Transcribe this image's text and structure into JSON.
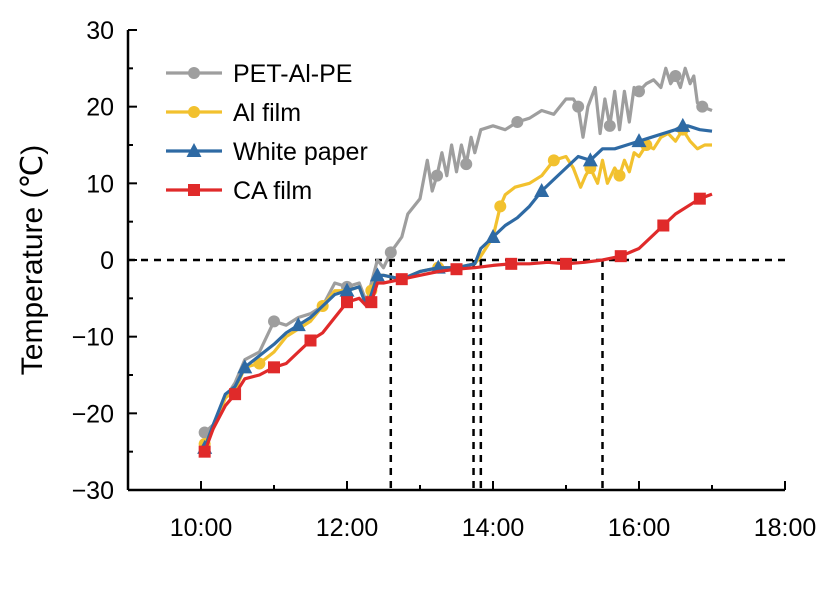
{
  "chart_data": {
    "type": "line",
    "title": "",
    "xlabel": "",
    "ylabel": "Temperature (℃)",
    "xlim": [
      "09:00",
      "18:00"
    ],
    "ylim": [
      -30,
      30
    ],
    "x_ticks": [
      "10:00",
      "12:00",
      "14:00",
      "16:00",
      "18:00"
    ],
    "y_ticks": [
      "−30",
      "−20",
      "−10",
      "0",
      "10",
      "20",
      "30"
    ],
    "grid": false,
    "legend_position": "top-left",
    "reference_lines": {
      "horizontal_y": 0,
      "vertical_x": [
        "12:36",
        "13:44",
        "13:50",
        "15:30"
      ]
    },
    "series": [
      {
        "name": "PET-Al-PE",
        "color": "#9e9e9e",
        "marker": "circle",
        "x": [
          "10:03",
          "10:10",
          "10:20",
          "10:28",
          "10:36",
          "10:48",
          "11:00",
          "11:10",
          "11:20",
          "11:30",
          "11:40",
          "11:50",
          "12:00",
          "12:10",
          "12:16",
          "12:20",
          "12:25",
          "12:30",
          "12:36",
          "12:45",
          "12:50",
          "13:00",
          "13:06",
          "13:10",
          "13:14",
          "13:18",
          "13:22",
          "13:26",
          "13:30",
          "13:34",
          "13:38",
          "13:42",
          "13:45",
          "13:50",
          "14:00",
          "14:10",
          "14:20",
          "14:30",
          "14:40",
          "14:50",
          "15:00",
          "15:06",
          "15:10",
          "15:14",
          "15:18",
          "15:24",
          "15:28",
          "15:32",
          "15:36",
          "15:40",
          "15:44",
          "15:48",
          "15:52",
          "15:56",
          "16:00",
          "16:06",
          "16:12",
          "16:18",
          "16:22",
          "16:26",
          "16:30",
          "16:34",
          "16:38",
          "16:42",
          "16:45",
          "16:48",
          "16:52",
          "17:00"
        ],
        "y": [
          -22.5,
          -21.5,
          -18,
          -16,
          -13,
          -12,
          -8,
          -8.5,
          -7.5,
          -7,
          -6,
          -3,
          -3.5,
          -3,
          -5.5,
          -3,
          0,
          -1,
          1,
          3,
          6,
          8,
          13,
          9,
          11,
          14,
          11,
          15,
          11.5,
          15,
          12.5,
          16,
          14,
          17,
          17.5,
          17,
          18,
          18.5,
          19.5,
          19,
          21,
          21,
          20,
          16,
          20,
          22.5,
          16.5,
          21,
          17.5,
          22,
          17,
          22,
          18,
          22.5,
          22,
          23,
          23.5,
          22.5,
          25,
          23,
          24,
          22.5,
          25,
          23,
          24,
          20.5,
          20,
          19.5
        ]
      },
      {
        "name": "Al film",
        "color": "#f2c12e",
        "marker": "circle",
        "x": [
          "10:03",
          "10:10",
          "10:20",
          "10:28",
          "10:36",
          "10:48",
          "11:00",
          "11:10",
          "11:20",
          "11:30",
          "11:40",
          "11:50",
          "12:00",
          "12:10",
          "12:16",
          "12:20",
          "12:25",
          "12:30",
          "12:45",
          "13:00",
          "13:15",
          "13:30",
          "13:45",
          "13:50",
          "14:00",
          "14:06",
          "14:10",
          "14:18",
          "14:30",
          "14:40",
          "14:50",
          "15:00",
          "15:06",
          "15:12",
          "15:16",
          "15:20",
          "15:26",
          "15:30",
          "15:34",
          "15:40",
          "15:44",
          "15:48",
          "15:52",
          "15:56",
          "16:00",
          "16:06",
          "16:12",
          "16:18",
          "16:24",
          "16:30",
          "16:36",
          "16:42",
          "16:48",
          "16:54",
          "17:00"
        ],
        "y": [
          -24,
          -22,
          -18,
          -17,
          -14,
          -13.5,
          -12,
          -10,
          -9,
          -8,
          -6,
          -4,
          -4,
          -3.5,
          -6,
          -4,
          -2,
          -2,
          -2.5,
          -1.5,
          -1,
          -1,
          -0.5,
          0.5,
          3,
          7,
          8.5,
          9.5,
          10,
          11,
          13,
          13.5,
          12,
          9.5,
          11,
          12,
          10,
          13,
          10,
          12,
          11,
          13,
          11.5,
          14,
          13.5,
          15,
          14.5,
          16,
          16.5,
          15.5,
          17,
          15.5,
          14.5,
          15,
          15
        ]
      },
      {
        "name": "White paper",
        "color": "#2e6aa4",
        "marker": "triangle",
        "x": [
          "10:03",
          "10:10",
          "10:20",
          "10:28",
          "10:36",
          "10:48",
          "11:00",
          "11:10",
          "11:20",
          "11:30",
          "11:40",
          "11:50",
          "12:00",
          "12:10",
          "12:16",
          "12:20",
          "12:25",
          "12:30",
          "12:45",
          "13:00",
          "13:15",
          "13:30",
          "13:45",
          "13:50",
          "14:00",
          "14:10",
          "14:20",
          "14:30",
          "14:40",
          "14:50",
          "15:00",
          "15:10",
          "15:20",
          "15:30",
          "15:40",
          "15:50",
          "16:00",
          "16:10",
          "16:20",
          "16:30",
          "16:36",
          "16:40",
          "16:50",
          "17:00"
        ],
        "y": [
          -24.5,
          -21.5,
          -17.5,
          -16.5,
          -14,
          -12.5,
          -11,
          -9.5,
          -8.5,
          -7.5,
          -6,
          -4.5,
          -4,
          -3.5,
          -6,
          -4.5,
          -2,
          -2,
          -2.5,
          -1.5,
          -1,
          -1,
          -0.5,
          1.5,
          3,
          4.5,
          5.5,
          7,
          9,
          10.5,
          12,
          13.5,
          13,
          14.5,
          14.5,
          15,
          15.5,
          16,
          16.5,
          17,
          17.5,
          17.5,
          17,
          16.8
        ]
      },
      {
        "name": "CA film",
        "color": "#e02a2a",
        "marker": "square",
        "x": [
          "10:03",
          "10:10",
          "10:20",
          "10:28",
          "10:36",
          "10:48",
          "11:00",
          "11:10",
          "11:20",
          "11:30",
          "11:40",
          "11:50",
          "12:00",
          "12:10",
          "12:16",
          "12:20",
          "12:25",
          "12:30",
          "12:45",
          "13:00",
          "13:15",
          "13:30",
          "13:45",
          "14:00",
          "14:15",
          "14:30",
          "14:45",
          "15:00",
          "15:15",
          "15:30",
          "15:45",
          "16:00",
          "16:10",
          "16:20",
          "16:30",
          "16:40",
          "16:50",
          "17:00"
        ],
        "y": [
          -25,
          -22,
          -19,
          -17.5,
          -15.5,
          -15,
          -14,
          -13.5,
          -12,
          -10.5,
          -9.5,
          -7.5,
          -5.5,
          -5,
          -6,
          -5.5,
          -3,
          -3,
          -2.5,
          -2,
          -1.5,
          -1.2,
          -1,
          -0.7,
          -0.5,
          -0.5,
          -0.3,
          -0.5,
          -0.3,
          0,
          0.5,
          1.5,
          3,
          4.5,
          6,
          7,
          8,
          8.6
        ]
      }
    ]
  }
}
